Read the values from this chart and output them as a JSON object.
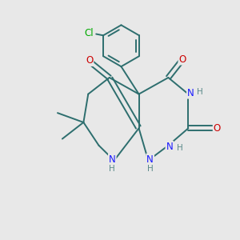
{
  "bg_color": "#e8e8e8",
  "bond_color": "#2d6e6e",
  "atom_colors": {
    "O": "#cc0000",
    "N": "#1a1aff",
    "Cl": "#00aa00",
    "H": "#5a8a8a",
    "C": "#2d6e6e"
  },
  "figsize": [
    3.0,
    3.0
  ],
  "dpi": 100
}
